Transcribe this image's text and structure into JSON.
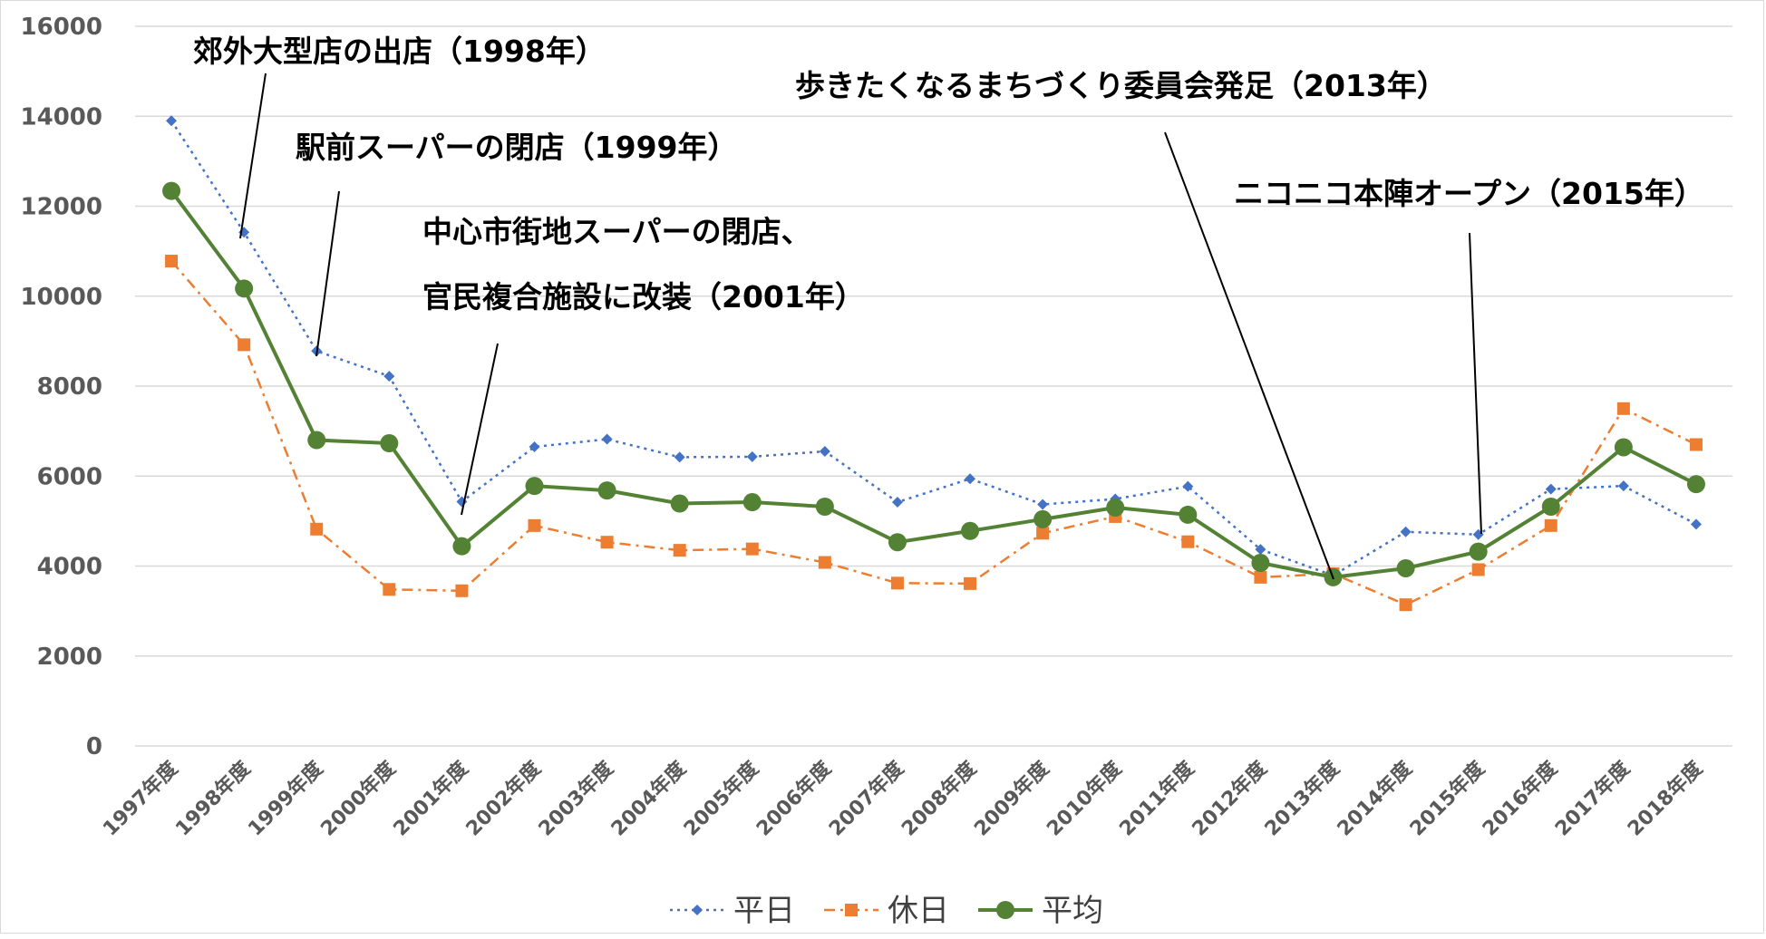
{
  "chart_data": {
    "type": "line",
    "title": "",
    "xlabel": "",
    "ylabel": "",
    "ylim": [
      0,
      16000
    ],
    "yticks": [
      0,
      2000,
      4000,
      6000,
      8000,
      10000,
      12000,
      14000,
      16000
    ],
    "grid": "horizontal",
    "legend_position": "bottom",
    "categories": [
      "1997年度",
      "1998年度",
      "1999年度",
      "2000年度",
      "2001年度",
      "2002年度",
      "2003年度",
      "2004年度",
      "2005年度",
      "2006年度",
      "2007年度",
      "2008年度",
      "2009年度",
      "2010年度",
      "2011年度",
      "2012年度",
      "2013年度",
      "2014年度",
      "2015年度",
      "2016年度",
      "2017年度",
      "2018年度"
    ],
    "series": [
      {
        "name": "平日",
        "color": "#4472c4",
        "style": "dotted",
        "marker": "diamond",
        "values": [
          13900,
          11420,
          8780,
          8220,
          5430,
          6650,
          6820,
          6420,
          6430,
          6550,
          5420,
          5940,
          5370,
          5490,
          5770,
          4370,
          3790,
          4760,
          4700,
          5710,
          5780,
          4930
        ]
      },
      {
        "name": "休日",
        "color": "#ed7d31",
        "style": "dashdot",
        "marker": "square",
        "values": [
          10780,
          8920,
          4820,
          3480,
          3450,
          4900,
          4530,
          4350,
          4380,
          4080,
          3620,
          3610,
          4730,
          5100,
          4540,
          3750,
          3830,
          3140,
          3920,
          4900,
          7500,
          6700
        ]
      },
      {
        "name": "平均",
        "color": "#548235",
        "style": "solid",
        "marker": "circle",
        "values": [
          12340,
          10170,
          6800,
          6730,
          4440,
          5780,
          5680,
          5390,
          5420,
          5320,
          4530,
          4780,
          5040,
          5300,
          5140,
          4070,
          3750,
          3950,
          4320,
          5320,
          6640,
          5820
        ]
      }
    ],
    "annotations": [
      {
        "text": "郊外大型店の出店（1998年）",
        "category": "1998年度"
      },
      {
        "text": "駅前スーパーの閉店（1999年）",
        "category": "1999年度"
      },
      {
        "text": "中心市街地スーパーの閉店、",
        "category": "2001年度"
      },
      {
        "text": "官民複合施設に改装（2001年）",
        "category": "2001年度"
      },
      {
        "text": "歩きたくなるまちづくり委員会発足（2013年）",
        "category": "2013年度"
      },
      {
        "text": "ニコニコ本陣オープン（2015年）",
        "category": "2015年度"
      }
    ]
  }
}
